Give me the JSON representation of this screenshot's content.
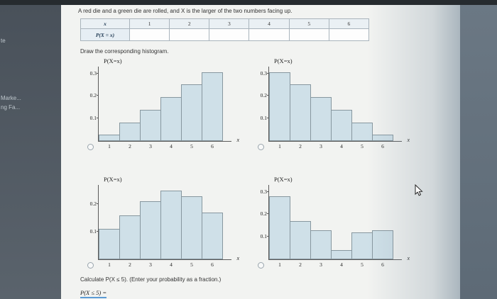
{
  "colors": {
    "bar_fill": "#cfe0e8",
    "bar_border": "#87979f",
    "accent_blue": "#5b9bd5",
    "panel_bg": "#f2f3f1",
    "outer_bg": "#5d6a76"
  },
  "sidebar": {
    "items": [
      "te",
      "Marke...",
      "ng Fa..."
    ]
  },
  "question": {
    "text": "A red die and a green die are rolled, and X is the larger of the two numbers facing up.",
    "draw_prompt": "Draw the corresponding histogram.",
    "calc_prompt": "Calculate P(X ≤ 5). (Enter your probability as a fraction.)",
    "answer_label": "P(X ≤ 5) ="
  },
  "table": {
    "x_label": "x",
    "row_label": "P(X = x)",
    "columns": [
      "1",
      "2",
      "3",
      "4",
      "5",
      "6"
    ],
    "values": [
      "",
      "",
      "",
      "",
      "",
      ""
    ]
  },
  "chart_data": [
    {
      "type": "bar",
      "position": "top-left",
      "ylabel": "P(X=x)",
      "xlabel": "x",
      "categories": [
        "1",
        "2",
        "3",
        "4",
        "5",
        "6"
      ],
      "values": [
        0.028,
        0.083,
        0.139,
        0.194,
        0.25,
        0.306
      ],
      "yticks": [
        0.1,
        0.2,
        0.3
      ],
      "ymax": 0.33,
      "grid": false,
      "legend": false
    },
    {
      "type": "bar",
      "position": "top-right",
      "ylabel": "P(X=x)",
      "xlabel": "x",
      "categories": [
        "1",
        "2",
        "3",
        "4",
        "5",
        "6"
      ],
      "values": [
        0.306,
        0.25,
        0.194,
        0.139,
        0.083,
        0.028
      ],
      "yticks": [
        0.1,
        0.2,
        0.3
      ],
      "ymax": 0.33,
      "grid": false,
      "legend": false
    },
    {
      "type": "bar",
      "position": "bottom-left",
      "ylabel": "P(X=x)",
      "xlabel": "x",
      "categories": [
        "1",
        "2",
        "3",
        "4",
        "5",
        "6"
      ],
      "values": [
        0.11,
        0.16,
        0.21,
        0.25,
        0.23,
        0.17
      ],
      "yticks": [
        0.1,
        0.2
      ],
      "ymax": 0.27,
      "grid": false,
      "legend": false
    },
    {
      "type": "bar",
      "position": "bottom-right",
      "ylabel": "P(X=x)",
      "xlabel": "x",
      "categories": [
        "1",
        "2",
        "3",
        "4",
        "5",
        "6"
      ],
      "values": [
        0.28,
        0.17,
        0.13,
        0.04,
        0.12,
        0.13
      ],
      "yticks": [
        0.1,
        0.2,
        0.3
      ],
      "ymax": 0.33,
      "grid": false,
      "legend": false
    }
  ]
}
